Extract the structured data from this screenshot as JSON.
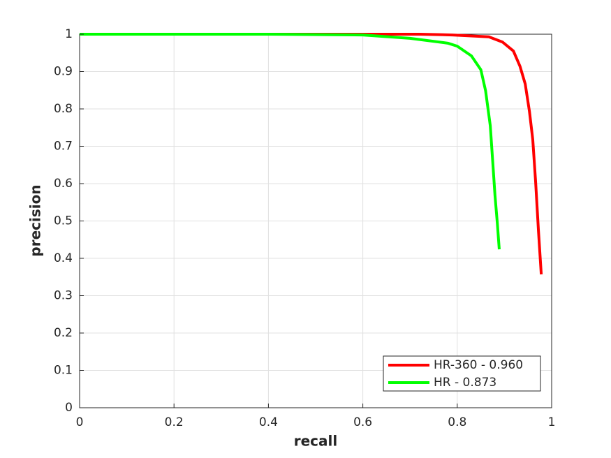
{
  "chart_data": {
    "type": "line",
    "xlabel": "recall",
    "ylabel": "precision",
    "xlim": [
      0,
      1
    ],
    "ylim": [
      0,
      1
    ],
    "xticks": [
      0,
      0.2,
      0.4,
      0.6,
      0.8,
      1
    ],
    "yticks": [
      0,
      0.1,
      0.2,
      0.3,
      0.4,
      0.5,
      0.6,
      0.7,
      0.8,
      0.9,
      1
    ],
    "grid": true,
    "legend": "lower-right",
    "series": [
      {
        "name": "HR-360 - 0.960",
        "color": "#ff0000",
        "x": [
          0,
          0.4,
          0.72,
          0.79,
          0.867,
          0.896,
          0.919,
          0.933,
          0.944,
          0.953,
          0.96,
          0.966,
          0.972,
          0.978
        ],
        "values": [
          1,
          1,
          1,
          0.998,
          0.993,
          0.979,
          0.955,
          0.914,
          0.867,
          0.793,
          0.718,
          0.606,
          0.475,
          0.357
        ]
      },
      {
        "name": "HR - 0.873",
        "color": "#00ff00",
        "x": [
          0,
          0.4,
          0.6,
          0.7,
          0.78,
          0.8,
          0.83,
          0.85,
          0.86,
          0.87,
          0.875,
          0.88,
          0.885,
          0.889
        ],
        "values": [
          1,
          1,
          0.998,
          0.989,
          0.976,
          0.968,
          0.942,
          0.905,
          0.849,
          0.755,
          0.662,
          0.568,
          0.493,
          0.424
        ]
      }
    ]
  }
}
